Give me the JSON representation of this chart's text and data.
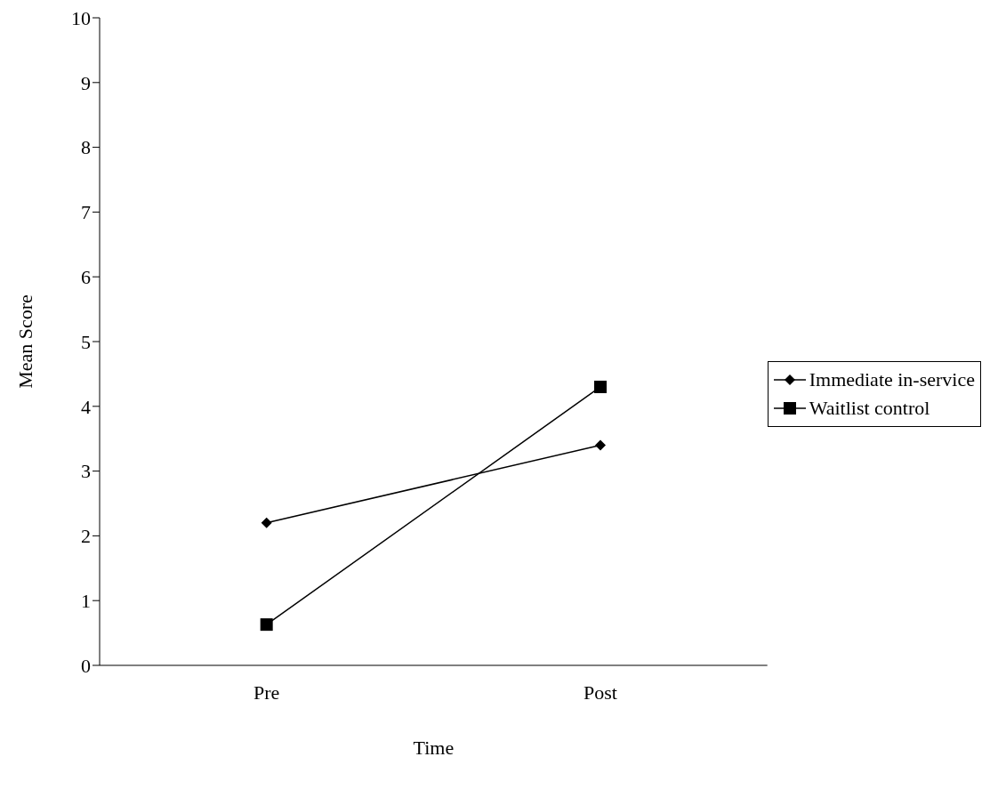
{
  "chart_data": {
    "type": "line",
    "xlabel": "Time",
    "ylabel": "Mean Score",
    "categories": [
      "Pre",
      "Post"
    ],
    "series": [
      {
        "name": "Immediate in-service",
        "color": "#000000",
        "values": [
          2.2,
          3.4
        ],
        "marker": "diamond"
      },
      {
        "name": "Waitlist control",
        "color": "#000000",
        "values": [
          0.63,
          4.3
        ],
        "marker": "square"
      }
    ],
    "ylim": [
      0,
      10
    ],
    "yticks": [
      0,
      1,
      2,
      3,
      4,
      5,
      6,
      7,
      8,
      9,
      10
    ],
    "grid": false,
    "legend": "right",
    "line_style": "solid"
  }
}
